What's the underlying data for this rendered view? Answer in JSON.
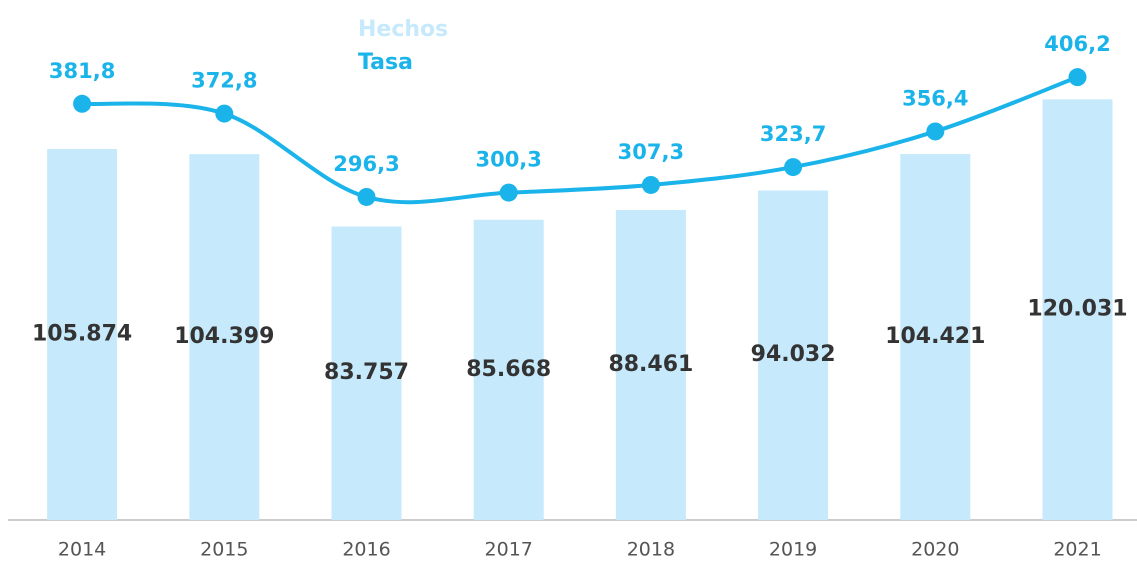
{
  "chart_data": {
    "type": "bar-line",
    "categories": [
      "2014",
      "2015",
      "2016",
      "2017",
      "2018",
      "2019",
      "2020",
      "2021"
    ],
    "series": [
      {
        "name": "Hechos",
        "type": "bar",
        "color": "#c6e9fb",
        "values": [
          105874,
          104399,
          83757,
          85668,
          88461,
          94032,
          104421,
          120031
        ],
        "value_labels": [
          "105.874",
          "104.399",
          "83.757",
          "85.668",
          "88.461",
          "94.032",
          "104.421",
          "120.031"
        ]
      },
      {
        "name": "Tasa",
        "type": "line",
        "axis": "y2",
        "color": "#1bb4ea",
        "values": [
          381.8,
          372.8,
          296.3,
          300.3,
          307.3,
          323.7,
          356.4,
          406.2
        ],
        "value_labels": [
          "381,8",
          "372,8",
          "296,3",
          "300,3",
          "307,3",
          "323,7",
          "356,4",
          "406,2"
        ]
      }
    ],
    "ylim": [
      0,
      140000
    ],
    "y2lim": [
      0,
      450
    ]
  }
}
